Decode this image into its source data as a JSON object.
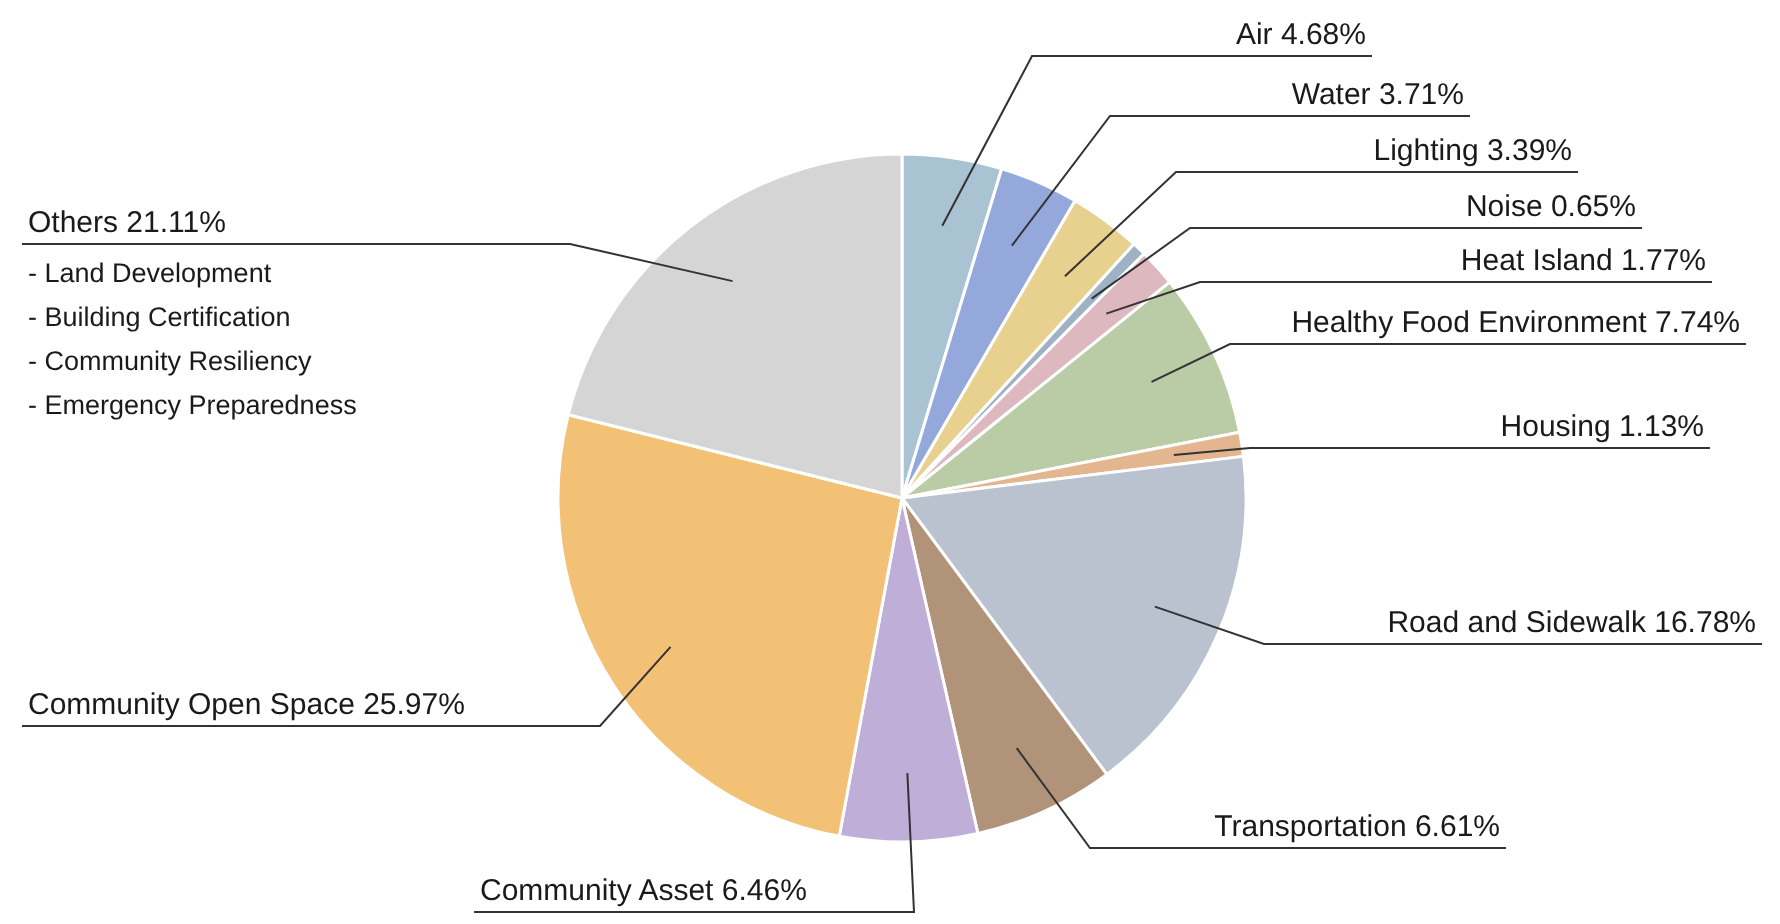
{
  "chart_data": {
    "type": "pie",
    "categories": [
      "Air",
      "Water",
      "Lighting",
      "Noise",
      "Heat Island",
      "Healthy Food Environment",
      "Housing",
      "Road and Sidewalk",
      "Transportation",
      "Community Asset",
      "Community Open Space",
      "Others"
    ],
    "values": [
      4.68,
      3.71,
      3.39,
      0.65,
      1.77,
      7.74,
      1.13,
      16.78,
      6.61,
      6.46,
      25.97,
      21.11
    ],
    "value_labels": [
      "4.68%",
      "3.71%",
      "3.39%",
      "0.65%",
      "1.77%",
      "7.74%",
      "1.13%",
      "16.78%",
      "6.61%",
      "6.46%",
      "25.97%",
      "21.11%"
    ],
    "colors": [
      "#a9c3d3",
      "#94a8dc",
      "#e8d08e",
      "#9fb2c5",
      "#ddb8be",
      "#b9cca6",
      "#e3b68f",
      "#b9c2ce",
      "#b09378",
      "#bfaed8",
      "#f3c176",
      "#d5d5d5"
    ],
    "annotations": [
      "- Land Development",
      "- Building Certification",
      "- Community Resiliency",
      "- Emergency Preparedness"
    ]
  }
}
